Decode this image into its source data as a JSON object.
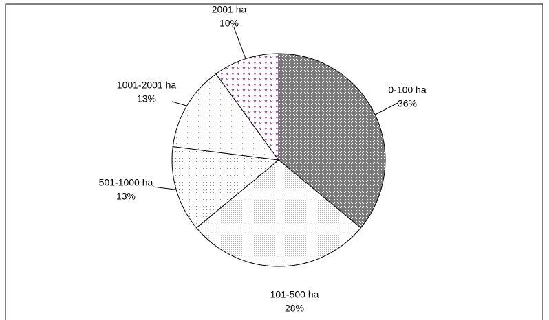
{
  "chart_data": {
    "type": "pie",
    "categories": [
      "0-100 ha",
      "101-500 ha",
      "501-1000 ha",
      "1001-2001 ha",
      "2001 ha"
    ],
    "values": [
      36,
      28,
      13,
      13,
      10
    ],
    "value_labels": [
      "36%",
      "28%",
      "13%",
      "13%",
      "10%"
    ],
    "colors": [
      "#7a7a7a",
      "#b8b8b8",
      "#8c8c8c",
      "#9a9a9a",
      "#9933aa"
    ]
  }
}
